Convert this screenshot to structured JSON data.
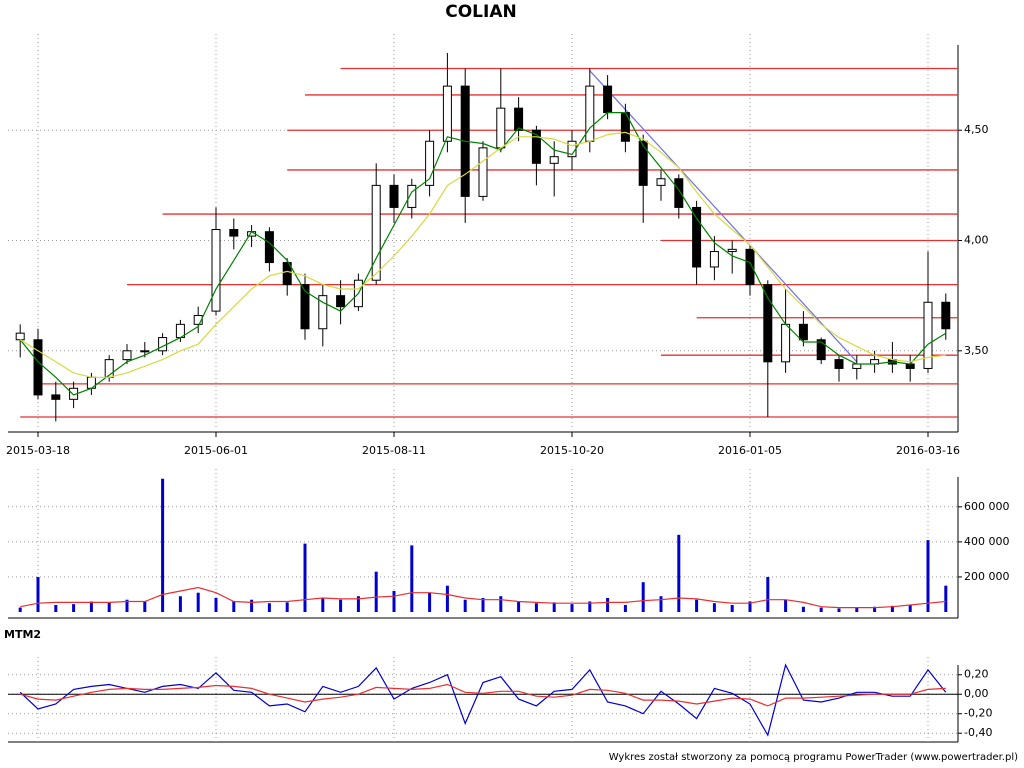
{
  "chart_data": [
    {
      "type": "candlestick",
      "title": "COLIAN",
      "x": [
        "2015-03-11",
        "2015-03-18",
        "2015-03-25",
        "2015-04-01",
        "2015-04-08",
        "2015-04-15",
        "2015-04-22",
        "2015-04-29",
        "2015-05-07",
        "2015-05-14",
        "2015-05-22",
        "2015-06-01",
        "2015-06-08",
        "2015-06-15",
        "2015-06-22",
        "2015-06-29",
        "2015-07-06",
        "2015-07-13",
        "2015-07-20",
        "2015-07-27",
        "2015-08-03",
        "2015-08-11",
        "2015-08-18",
        "2015-08-25",
        "2015-09-01",
        "2015-09-08",
        "2015-09-15",
        "2015-09-22",
        "2015-09-29",
        "2015-10-06",
        "2015-10-13",
        "2015-10-20",
        "2015-10-27",
        "2015-11-03",
        "2015-11-10",
        "2015-11-17",
        "2015-11-24",
        "2015-12-01",
        "2015-12-08",
        "2015-12-15",
        "2015-12-22",
        "2016-01-05",
        "2016-01-12",
        "2016-01-19",
        "2016-01-26",
        "2016-02-02",
        "2016-02-09",
        "2016-02-16",
        "2016-02-23",
        "2016-03-01",
        "2016-03-08",
        "2016-03-16",
        "2016-03-21"
      ],
      "open": [
        3.55,
        3.55,
        3.3,
        3.28,
        3.33,
        3.38,
        3.46,
        3.5,
        3.5,
        3.56,
        3.62,
        3.68,
        4.05,
        4.02,
        4.04,
        3.9,
        3.8,
        3.6,
        3.75,
        3.7,
        3.82,
        4.25,
        4.15,
        4.25,
        4.45,
        4.7,
        4.2,
        4.42,
        4.6,
        4.5,
        4.35,
        4.38,
        4.45,
        4.7,
        4.58,
        4.45,
        4.25,
        4.28,
        4.15,
        3.88,
        3.95,
        3.96,
        3.8,
        3.45,
        3.62,
        3.55,
        3.46,
        3.42,
        3.44,
        3.46,
        3.44,
        3.42,
        3.72
      ],
      "high": [
        3.62,
        3.6,
        3.36,
        3.36,
        3.4,
        3.48,
        3.53,
        3.54,
        3.58,
        3.64,
        3.7,
        4.15,
        4.1,
        4.07,
        4.06,
        3.92,
        3.85,
        3.8,
        3.82,
        3.85,
        4.35,
        4.3,
        4.28,
        4.5,
        4.85,
        4.78,
        4.45,
        4.78,
        4.65,
        4.52,
        4.45,
        4.5,
        4.78,
        4.75,
        4.62,
        4.48,
        4.32,
        4.3,
        4.18,
        4.02,
        4.0,
        3.98,
        3.82,
        3.78,
        3.68,
        3.56,
        3.48,
        3.48,
        3.5,
        3.54,
        3.48,
        3.95,
        3.76
      ],
      "low": [
        3.47,
        3.28,
        3.18,
        3.24,
        3.3,
        3.36,
        3.44,
        3.47,
        3.48,
        3.54,
        3.58,
        3.66,
        3.96,
        3.97,
        3.86,
        3.75,
        3.55,
        3.52,
        3.62,
        3.68,
        3.8,
        4.08,
        4.1,
        4.2,
        4.4,
        4.08,
        4.18,
        4.4,
        4.45,
        4.25,
        4.2,
        4.32,
        4.4,
        4.55,
        4.4,
        4.08,
        4.18,
        4.1,
        3.8,
        3.82,
        3.85,
        3.75,
        3.2,
        3.4,
        3.52,
        3.44,
        3.36,
        3.37,
        3.4,
        3.4,
        3.36,
        3.4,
        3.55
      ],
      "close": [
        3.58,
        3.3,
        3.28,
        3.33,
        3.38,
        3.46,
        3.5,
        3.5,
        3.56,
        3.62,
        3.66,
        4.05,
        4.02,
        4.04,
        3.9,
        3.8,
        3.6,
        3.75,
        3.7,
        3.82,
        4.25,
        4.15,
        4.25,
        4.45,
        4.7,
        4.2,
        4.42,
        4.6,
        4.5,
        4.35,
        4.38,
        4.45,
        4.7,
        4.58,
        4.45,
        4.25,
        4.28,
        4.15,
        3.88,
        3.95,
        3.96,
        3.8,
        3.45,
        3.62,
        3.55,
        3.46,
        3.42,
        3.44,
        3.46,
        3.44,
        3.42,
        3.72,
        3.6
      ],
      "lines": [
        {
          "color": "#008000",
          "values": [
            3.55,
            3.45,
            3.38,
            3.3,
            3.33,
            3.39,
            3.45,
            3.48,
            3.52,
            3.56,
            3.61,
            3.78,
            3.91,
            4.04,
            3.99,
            3.91,
            3.77,
            3.72,
            3.68,
            3.76,
            3.92,
            4.07,
            4.22,
            4.28,
            4.47,
            4.45,
            4.44,
            4.41,
            4.51,
            4.48,
            4.41,
            4.39,
            4.51,
            4.58,
            4.58,
            4.43,
            4.33,
            4.23,
            4.1,
            3.99,
            3.93,
            3.9,
            3.74,
            3.62,
            3.54,
            3.54,
            3.48,
            3.44,
            3.44,
            3.45,
            3.44,
            3.53,
            3.58
          ]
        },
        {
          "color": "#d8d840",
          "values": [
            3.55,
            3.5,
            3.45,
            3.4,
            3.38,
            3.38,
            3.4,
            3.43,
            3.46,
            3.5,
            3.53,
            3.62,
            3.7,
            3.78,
            3.84,
            3.86,
            3.84,
            3.8,
            3.78,
            3.78,
            3.85,
            3.93,
            4.02,
            4.12,
            4.25,
            4.3,
            4.36,
            4.42,
            4.47,
            4.47,
            4.46,
            4.43,
            4.45,
            4.48,
            4.49,
            4.46,
            4.4,
            4.33,
            4.22,
            4.12,
            4.05,
            3.98,
            3.88,
            3.78,
            3.7,
            3.62,
            3.56,
            3.52,
            3.48,
            3.46,
            3.45,
            3.47,
            3.48
          ]
        }
      ],
      "levels": [
        {
          "value": 4.78,
          "start": "2015-07-20"
        },
        {
          "value": 4.66,
          "start": "2015-07-06"
        },
        {
          "value": 4.5,
          "start": "2015-06-29"
        },
        {
          "value": 4.32,
          "start": "2015-06-29"
        },
        {
          "value": 4.12,
          "start": "2015-05-07"
        },
        {
          "value": 4.0,
          "start": "2015-11-24"
        },
        {
          "value": 3.8,
          "start": "2015-04-22"
        },
        {
          "value": 3.65,
          "start": "2015-12-08"
        },
        {
          "value": 3.48,
          "start": "2015-11-24"
        },
        {
          "value": 3.35,
          "start": "2015-03-18"
        },
        {
          "value": 3.2,
          "start": "2015-03-11"
        }
      ],
      "level_color": "#e83030",
      "trendline": {
        "x": [
          "2015-10-27",
          "2016-02-16"
        ],
        "y": [
          4.77,
          3.45
        ],
        "color": "#7070e0"
      },
      "ylim": [
        3.15,
        4.9
      ],
      "yticks": [
        {
          "value": 3.5,
          "label": "3,50"
        },
        {
          "value": 4.0,
          "label": "4,00"
        },
        {
          "value": 4.5,
          "label": "4,50"
        }
      ],
      "xticks": [
        "2015-03-18",
        "2015-06-01",
        "2015-08-11",
        "2015-10-20",
        "2016-01-05",
        "2016-03-16"
      ],
      "grid": true
    },
    {
      "type": "bar",
      "color": "#0000d0",
      "values": [
        25000,
        200000,
        40000,
        45000,
        60000,
        55000,
        70000,
        60000,
        760000,
        90000,
        110000,
        80000,
        60000,
        70000,
        50000,
        55000,
        390000,
        80000,
        70000,
        90000,
        230000,
        120000,
        380000,
        110000,
        150000,
        70000,
        80000,
        90000,
        60000,
        50000,
        55000,
        45000,
        60000,
        80000,
        40000,
        170000,
        90000,
        440000,
        70000,
        50000,
        40000,
        60000,
        200000,
        70000,
        30000,
        25000,
        20000,
        25000,
        30000,
        35000,
        40000,
        410000,
        150000
      ],
      "ma": {
        "color": "#e83030",
        "values": [
          30000,
          50000,
          55000,
          55000,
          55000,
          55000,
          60000,
          60000,
          100000,
          120000,
          140000,
          110000,
          60000,
          55000,
          60000,
          60000,
          70000,
          80000,
          75000,
          75000,
          85000,
          90000,
          110000,
          110000,
          100000,
          80000,
          70000,
          70000,
          60000,
          55000,
          50000,
          50000,
          50000,
          55000,
          55000,
          65000,
          70000,
          80000,
          75000,
          60000,
          50000,
          50000,
          70000,
          70000,
          55000,
          30000,
          25000,
          25000,
          25000,
          30000,
          40000,
          50000,
          60000
        ]
      },
      "ylim": [
        0,
        770000
      ],
      "yticks": [
        {
          "value": 200000,
          "label": "200 000"
        },
        {
          "value": 400000,
          "label": "400 000"
        },
        {
          "value": 600000,
          "label": "600 000"
        }
      ],
      "grid": true
    },
    {
      "type": "line",
      "title": "MTM2",
      "series": [
        {
          "color": "#0000d0",
          "values": [
            0.02,
            -0.15,
            -0.1,
            0.05,
            0.08,
            0.1,
            0.06,
            0.02,
            0.08,
            0.1,
            0.06,
            0.22,
            0.04,
            0.02,
            -0.12,
            -0.1,
            -0.18,
            0.08,
            0.02,
            0.08,
            0.27,
            -0.05,
            0.06,
            0.12,
            0.2,
            -0.3,
            0.12,
            0.18,
            -0.05,
            -0.12,
            0.03,
            0.05,
            0.25,
            -0.08,
            -0.12,
            -0.2,
            0.03,
            -0.1,
            -0.25,
            0.06,
            0.01,
            -0.1,
            -0.42,
            0.3,
            -0.06,
            -0.08,
            -0.04,
            0.02,
            0.02,
            -0.02,
            -0.02,
            0.25,
            0.02
          ]
        },
        {
          "color": "#e83030",
          "values": [
            0.0,
            -0.05,
            -0.06,
            -0.02,
            0.02,
            0.05,
            0.06,
            0.05,
            0.05,
            0.06,
            0.07,
            0.09,
            0.08,
            0.06,
            0.0,
            -0.04,
            -0.08,
            -0.05,
            -0.03,
            0.0,
            0.07,
            0.06,
            0.05,
            0.06,
            0.1,
            0.02,
            0.01,
            0.03,
            0.03,
            -0.02,
            -0.03,
            -0.01,
            0.05,
            0.04,
            0.01,
            -0.06,
            -0.06,
            -0.07,
            -0.1,
            -0.07,
            -0.04,
            -0.05,
            -0.12,
            -0.04,
            -0.04,
            -0.03,
            -0.02,
            -0.01,
            0.0,
            0.0,
            0.0,
            0.05,
            0.06
          ]
        }
      ],
      "ylim": [
        -0.49,
        0.3
      ],
      "yticks": [
        {
          "value": -0.4,
          "label": "-0,40"
        },
        {
          "value": -0.2,
          "label": "-0,20"
        },
        {
          "value": 0,
          "label": "0,00"
        },
        {
          "value": 0.2,
          "label": "0,20"
        }
      ],
      "grid": true
    }
  ],
  "footer": "Wykres został stworzony za pomocą programu PowerTrader (www.powertrader.pl)"
}
